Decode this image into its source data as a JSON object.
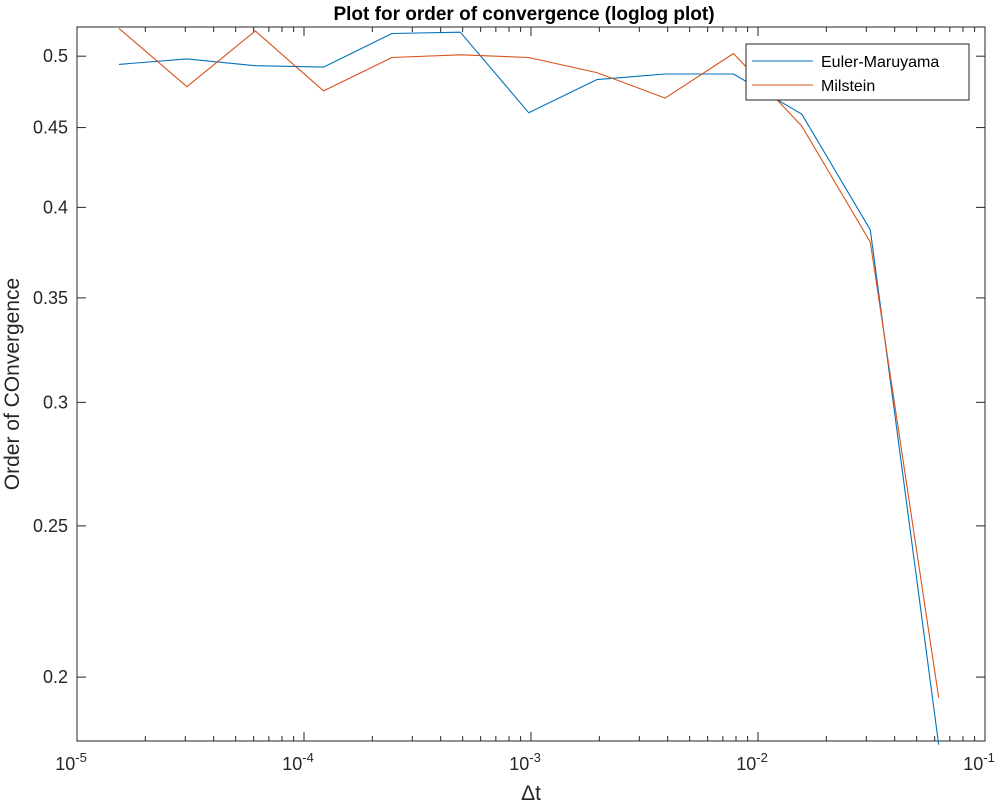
{
  "chart_data": {
    "type": "line",
    "title": "Plot for order of convergence (loglog plot)",
    "xlabel": "Δt",
    "ylabel": "Order of COnvergence",
    "x_scale": "log",
    "y_scale": "log",
    "xlim": [
      1e-05,
      0.1
    ],
    "ylim": [
      0.182,
      0.522
    ],
    "xticks": [
      {
        "value": 1e-05,
        "base": "10",
        "exp": "-5"
      },
      {
        "value": 0.0001,
        "base": "10",
        "exp": "-4"
      },
      {
        "value": 0.001,
        "base": "10",
        "exp": "-3"
      },
      {
        "value": 0.01,
        "base": "10",
        "exp": "-2"
      },
      {
        "value": 0.1,
        "base": "10",
        "exp": "-1"
      }
    ],
    "yticks": [
      {
        "value": 0.2,
        "label": "0.2"
      },
      {
        "value": 0.25,
        "label": "0.25"
      },
      {
        "value": 0.3,
        "label": "0.3"
      },
      {
        "value": 0.35,
        "label": "0.35"
      },
      {
        "value": 0.4,
        "label": "0.4"
      },
      {
        "value": 0.45,
        "label": "0.45"
      },
      {
        "value": 0.5,
        "label": "0.5"
      }
    ],
    "x": [
      1.53e-05,
      3.05e-05,
      6.1e-05,
      0.000122,
      0.000244,
      0.000488,
      0.000977,
      0.00195,
      0.0039,
      0.0078,
      0.0156,
      0.03125,
      0.0625
    ],
    "series": [
      {
        "name": "Euler-Maruyama",
        "color": "#0072BD",
        "values": [
          0.494,
          0.498,
          0.493,
          0.492,
          0.517,
          0.518,
          0.46,
          0.483,
          0.487,
          0.487,
          0.459,
          0.387,
          0.181
        ]
      },
      {
        "name": "Milstein",
        "color": "#D95319",
        "values": [
          0.521,
          0.478,
          0.519,
          0.475,
          0.499,
          0.501,
          0.499,
          0.488,
          0.47,
          0.502,
          0.451,
          0.38,
          0.194
        ]
      }
    ],
    "grid": false,
    "legend": "top-right"
  }
}
